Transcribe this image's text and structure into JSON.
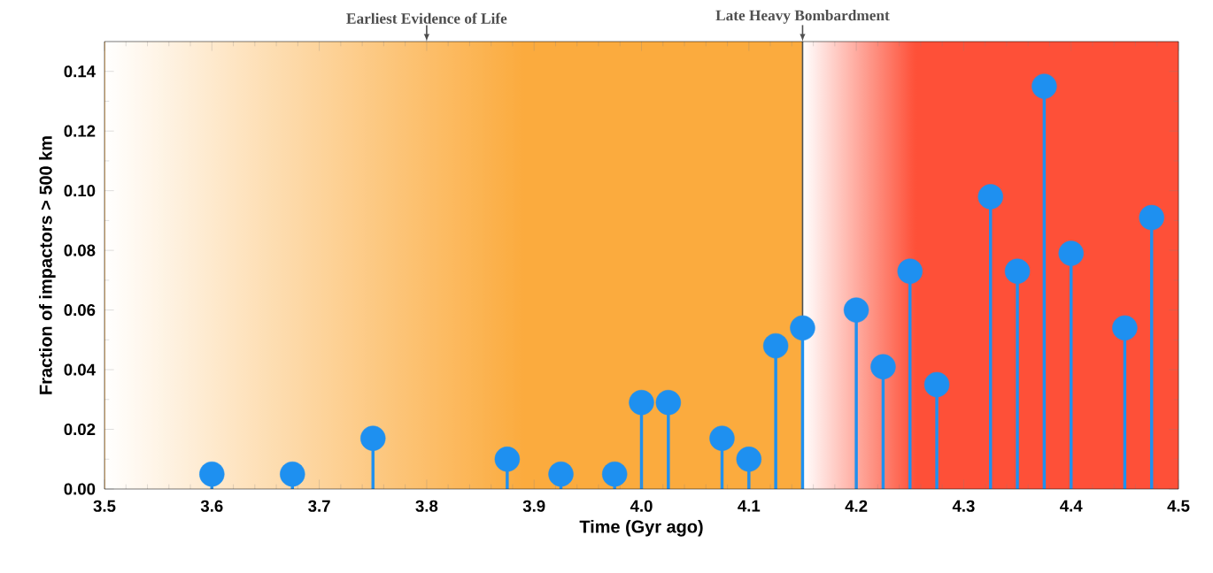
{
  "chart_data": {
    "type": "lollipop",
    "xlabel": "Time (Gyr ago)",
    "ylabel": "Fraction of impactors > 500 km",
    "x": [
      3.6,
      3.675,
      3.75,
      3.875,
      3.925,
      3.975,
      4.0,
      4.025,
      4.075,
      4.1,
      4.125,
      4.15,
      4.2,
      4.225,
      4.25,
      4.275,
      4.325,
      4.35,
      4.375,
      4.4,
      4.45,
      4.475
    ],
    "series": [
      {
        "color": "#1e90f0",
        "values": [
          0.005,
          0.005,
          0.017,
          0.01,
          0.005,
          0.005,
          0.029,
          0.029,
          0.017,
          0.01,
          0.048,
          0.054,
          0.06,
          0.041,
          0.073,
          0.035,
          0.098,
          0.073,
          0.135,
          0.079,
          0.054,
          0.091
        ]
      }
    ],
    "xlim": [
      3.5,
      4.5
    ],
    "ylim": [
      0,
      0.15
    ],
    "xticks": [
      3.5,
      3.6,
      3.7,
      3.8,
      3.9,
      {
        "value": 4.0,
        "label": "4.0"
      },
      4.1,
      4.2,
      4.3,
      4.4,
      4.5
    ],
    "yticks": [
      {
        "value": 0,
        "label": "0.00"
      },
      {
        "value": 0.02,
        "label": "0.02"
      },
      {
        "value": 0.04,
        "label": "0.04"
      },
      {
        "value": 0.06,
        "label": "0.06"
      },
      {
        "value": 0.08,
        "label": "0.08"
      },
      {
        "value": 0.1,
        "label": "0.10"
      },
      {
        "value": 0.12,
        "label": "0.12"
      },
      {
        "value": 0.14,
        "label": "0.14"
      }
    ],
    "bands": [
      {
        "axis": "x",
        "from": 3.5,
        "to": 4.15,
        "color": "#fbab3e"
      },
      {
        "axis": "x",
        "from": 4.15,
        "to": 4.5,
        "color": "#fe5038"
      }
    ],
    "ref_lines": [
      {
        "axis": "x",
        "value": 4.15,
        "label": "Late Heavy Bombardment",
        "color": "#505050"
      }
    ],
    "annotations": [
      {
        "text": "Earliest Evidence of Life",
        "x": 3.8,
        "y": 0.15
      }
    ],
    "marker": "circle",
    "grid": false
  }
}
